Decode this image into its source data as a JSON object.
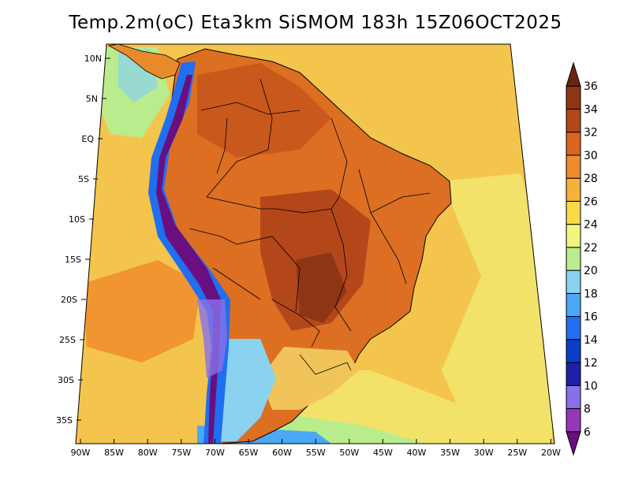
{
  "title": "Temp.2m(oC) Eta3km SiSMOM 183h 15Z06OCT2025",
  "axes": {
    "lat_labels": [
      "10N",
      "5N",
      "EQ",
      "5S",
      "10S",
      "15S",
      "20S",
      "25S",
      "30S",
      "35S"
    ],
    "lon_labels": [
      "90W",
      "85W",
      "80W",
      "75W",
      "70W",
      "65W",
      "60W",
      "55W",
      "50W",
      "45W",
      "40W",
      "35W",
      "30W",
      "25W",
      "20W"
    ]
  },
  "colorbar": {
    "levels": [
      "6",
      "8",
      "10",
      "12",
      "14",
      "16",
      "18",
      "20",
      "22",
      "24",
      "26",
      "28",
      "30",
      "32",
      "34",
      "36"
    ],
    "colors": [
      "#6a0f7f",
      "#9438b8",
      "#8a70e8",
      "#1f1fa8",
      "#0a3ec8",
      "#1f6ff0",
      "#4aa8f5",
      "#8ad2f0",
      "#b9ec8c",
      "#f0f57e",
      "#f8d948",
      "#f5b13a",
      "#ee8c2c",
      "#d9651f",
      "#b4471a",
      "#8e3516",
      "#6b2410"
    ]
  },
  "legend_semantics": {
    "ocean_base": "#f2c04a",
    "land_base": "#dc6f22"
  }
}
